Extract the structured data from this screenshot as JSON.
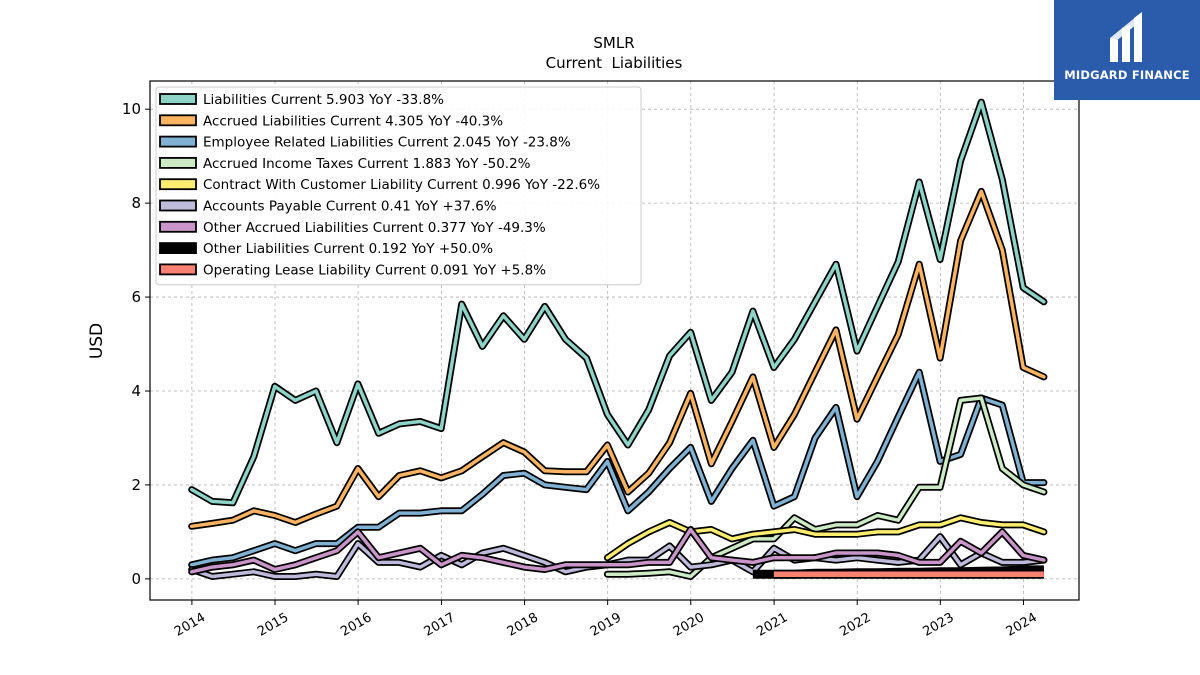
{
  "brand": {
    "name": "MIDGARD FINANCE",
    "logo_icon": "midgard-m-logo-icon",
    "background_color": "#2a5cab"
  },
  "chart_data": {
    "type": "line",
    "title": "SMLR",
    "subtitle": "Current  Liabilities",
    "xlabel": "",
    "ylabel": "USD",
    "xlim": [
      "2013-07-01",
      "2024-09-01"
    ],
    "ylim": [
      -0.45,
      10.6
    ],
    "yticks": [
      0,
      2,
      4,
      6,
      8,
      10
    ],
    "xticks": [
      "2014",
      "2015",
      "2016",
      "2017",
      "2018",
      "2019",
      "2020",
      "2021",
      "2022",
      "2023",
      "2024"
    ],
    "grid": true,
    "legend_position": "top-left",
    "series": [
      {
        "name": "Liabilities Current",
        "legend": "Liabilities Current  5.903 YoY -33.8%",
        "color": "#8dd3c7",
        "x": [
          "2013-12-31",
          "2014-03-31",
          "2014-06-30",
          "2014-09-30",
          "2014-12-31",
          "2015-03-31",
          "2015-06-30",
          "2015-09-30",
          "2015-12-31",
          "2016-03-31",
          "2016-06-30",
          "2016-09-30",
          "2016-12-31",
          "2017-03-31",
          "2017-06-30",
          "2017-09-30",
          "2017-12-31",
          "2018-03-31",
          "2018-06-30",
          "2018-09-30",
          "2018-12-31",
          "2019-03-31",
          "2019-06-30",
          "2019-09-30",
          "2019-12-31",
          "2020-03-31",
          "2020-06-30",
          "2020-09-30",
          "2020-12-31",
          "2021-03-31",
          "2021-06-30",
          "2021-09-30",
          "2021-12-31",
          "2022-03-31",
          "2022-06-30",
          "2022-09-30",
          "2022-12-31",
          "2023-03-31",
          "2023-06-30",
          "2023-09-30",
          "2023-12-31",
          "2024-03-31"
        ],
        "values": [
          1.9,
          1.65,
          1.62,
          2.6,
          4.1,
          3.8,
          4.0,
          2.9,
          4.15,
          3.1,
          3.3,
          3.35,
          3.2,
          5.85,
          4.95,
          5.6,
          5.1,
          5.8,
          5.1,
          4.7,
          3.5,
          2.85,
          3.6,
          4.75,
          5.25,
          3.8,
          4.4,
          5.7,
          4.5,
          5.1,
          5.9,
          6.7,
          4.85,
          5.8,
          6.75,
          8.45,
          6.8,
          8.9,
          10.15,
          8.5,
          6.2,
          5.9
        ]
      },
      {
        "name": "Accrued Liabilities Current",
        "legend": "Accrued Liabilities Current  4.305 YoY -40.3%",
        "color": "#fdb462",
        "x": [
          "2013-12-31",
          "2014-03-31",
          "2014-06-30",
          "2014-09-30",
          "2014-12-31",
          "2015-03-31",
          "2015-06-30",
          "2015-09-30",
          "2015-12-31",
          "2016-03-31",
          "2016-06-30",
          "2016-09-30",
          "2016-12-31",
          "2017-03-31",
          "2017-06-30",
          "2017-09-30",
          "2017-12-31",
          "2018-03-31",
          "2018-06-30",
          "2018-09-30",
          "2018-12-31",
          "2019-03-31",
          "2019-06-30",
          "2019-09-30",
          "2019-12-31",
          "2020-03-31",
          "2020-06-30",
          "2020-09-30",
          "2020-12-31",
          "2021-03-31",
          "2021-06-30",
          "2021-09-30",
          "2021-12-31",
          "2022-03-31",
          "2022-06-30",
          "2022-09-30",
          "2022-12-31",
          "2023-03-31",
          "2023-06-30",
          "2023-09-30",
          "2023-12-31",
          "2024-03-31"
        ],
        "values": [
          1.12,
          1.18,
          1.25,
          1.45,
          1.35,
          1.2,
          1.38,
          1.55,
          2.35,
          1.75,
          2.2,
          2.3,
          2.15,
          2.3,
          2.6,
          2.9,
          2.7,
          2.3,
          2.28,
          2.28,
          2.85,
          1.85,
          2.25,
          2.9,
          3.95,
          2.45,
          3.35,
          4.3,
          2.8,
          3.5,
          4.4,
          5.3,
          3.4,
          4.3,
          5.2,
          6.7,
          4.7,
          7.2,
          8.25,
          7.0,
          4.5,
          4.3
        ]
      },
      {
        "name": "Employee Related Liabilities Current",
        "legend": "Employee Related Liabilities Current  2.045 YoY -23.8%",
        "color": "#80b1d3",
        "x": [
          "2013-12-31",
          "2014-03-31",
          "2014-06-30",
          "2014-09-30",
          "2014-12-31",
          "2015-03-31",
          "2015-06-30",
          "2015-09-30",
          "2015-12-31",
          "2016-03-31",
          "2016-06-30",
          "2016-09-30",
          "2016-12-31",
          "2017-03-31",
          "2017-06-30",
          "2017-09-30",
          "2017-12-31",
          "2018-03-31",
          "2018-06-30",
          "2018-09-30",
          "2018-12-31",
          "2019-03-31",
          "2019-06-30",
          "2019-09-30",
          "2019-12-31",
          "2020-03-31",
          "2020-06-30",
          "2020-09-30",
          "2020-12-31",
          "2021-03-31",
          "2021-06-30",
          "2021-09-30",
          "2021-12-31",
          "2022-03-31",
          "2022-06-30",
          "2022-09-30",
          "2022-12-31",
          "2023-03-31",
          "2023-06-30",
          "2023-09-30",
          "2023-12-31",
          "2024-03-31"
        ],
        "values": [
          0.3,
          0.4,
          0.45,
          0.6,
          0.75,
          0.6,
          0.75,
          0.75,
          1.1,
          1.1,
          1.4,
          1.4,
          1.45,
          1.45,
          1.8,
          2.2,
          2.25,
          2.0,
          1.95,
          1.9,
          2.5,
          1.45,
          1.85,
          2.35,
          2.8,
          1.65,
          2.35,
          2.95,
          1.55,
          1.75,
          3.0,
          3.65,
          1.75,
          2.5,
          3.45,
          4.4,
          2.5,
          2.65,
          3.85,
          3.7,
          2.05,
          2.05
        ]
      },
      {
        "name": "Accrued Income Taxes Current",
        "legend": "Accrued Income Taxes Current  1.883 YoY -50.2%",
        "color": "#ccebc5",
        "x": [
          "2018-12-31",
          "2019-03-31",
          "2019-06-30",
          "2019-09-30",
          "2019-12-31",
          "2020-03-31",
          "2020-06-30",
          "2020-09-30",
          "2020-12-31",
          "2021-03-31",
          "2021-06-30",
          "2021-09-30",
          "2021-12-31",
          "2022-03-31",
          "2022-06-30",
          "2022-09-30",
          "2022-12-31",
          "2023-03-31",
          "2023-06-30",
          "2023-09-30",
          "2023-12-31",
          "2024-03-31"
        ],
        "values": [
          0.1,
          0.1,
          0.12,
          0.15,
          0.05,
          0.45,
          0.65,
          0.85,
          0.85,
          1.3,
          1.05,
          1.15,
          1.15,
          1.35,
          1.25,
          1.95,
          1.95,
          3.8,
          3.85,
          2.35,
          2.0,
          1.85
        ]
      },
      {
        "name": "Contract With Customer Liability Current",
        "legend": "Contract With Customer Liability Current  0.996 YoY -22.6%",
        "color": "#ffed6f",
        "x": [
          "2018-12-31",
          "2019-03-31",
          "2019-06-30",
          "2019-09-30",
          "2019-12-31",
          "2020-03-31",
          "2020-06-30",
          "2020-09-30",
          "2020-12-31",
          "2021-03-31",
          "2021-06-30",
          "2021-09-30",
          "2021-12-31",
          "2022-03-31",
          "2022-06-30",
          "2022-09-30",
          "2022-12-31",
          "2023-03-31",
          "2023-06-30",
          "2023-09-30",
          "2023-12-31",
          "2024-03-31"
        ],
        "values": [
          0.45,
          0.75,
          1.0,
          1.2,
          1.0,
          1.05,
          0.85,
          0.95,
          1.0,
          1.05,
          0.95,
          0.95,
          0.95,
          1.0,
          1.0,
          1.15,
          1.15,
          1.3,
          1.2,
          1.15,
          1.15,
          1.0
        ]
      },
      {
        "name": "Accounts Payable Current",
        "legend": "Accounts Payable Current  0.41 YoY +37.6%",
        "color": "#bebada",
        "x": [
          "2013-12-31",
          "2014-03-31",
          "2014-06-30",
          "2014-09-30",
          "2014-12-31",
          "2015-03-31",
          "2015-06-30",
          "2015-09-30",
          "2015-12-31",
          "2016-03-31",
          "2016-06-30",
          "2016-09-30",
          "2016-12-31",
          "2017-03-31",
          "2017-06-30",
          "2017-09-30",
          "2017-12-31",
          "2018-03-31",
          "2018-06-30",
          "2018-09-30",
          "2018-12-31",
          "2019-03-31",
          "2019-06-30",
          "2019-09-30",
          "2019-12-31",
          "2020-03-31",
          "2020-06-30",
          "2020-09-30",
          "2020-12-31",
          "2021-03-31",
          "2021-06-30",
          "2021-09-30",
          "2021-12-31",
          "2022-03-31",
          "2022-06-30",
          "2022-09-30",
          "2022-12-31",
          "2023-03-31",
          "2023-06-30",
          "2023-09-30",
          "2023-12-31",
          "2024-03-31"
        ],
        "values": [
          0.2,
          0.05,
          0.1,
          0.15,
          0.05,
          0.05,
          0.1,
          0.05,
          0.75,
          0.35,
          0.35,
          0.25,
          0.5,
          0.3,
          0.55,
          0.65,
          0.5,
          0.35,
          0.15,
          0.25,
          0.3,
          0.4,
          0.4,
          0.7,
          0.25,
          0.3,
          0.4,
          0.15,
          0.65,
          0.4,
          0.45,
          0.4,
          0.45,
          0.4,
          0.35,
          0.4,
          0.9,
          0.3,
          0.55,
          0.35,
          0.35,
          0.4
        ]
      },
      {
        "name": "Other Accrued Liabilities Current",
        "legend": "Other Accrued Liabilities Current  0.377 YoY -49.3%",
        "color": "#c994c7",
        "x": [
          "2013-12-31",
          "2014-03-31",
          "2014-06-30",
          "2014-09-30",
          "2014-12-31",
          "2015-03-31",
          "2015-06-30",
          "2015-09-30",
          "2015-12-31",
          "2016-03-31",
          "2016-06-30",
          "2016-09-30",
          "2016-12-31",
          "2017-03-31",
          "2017-06-30",
          "2017-09-30",
          "2017-12-31",
          "2018-03-31",
          "2018-06-30",
          "2018-09-30",
          "2018-12-31",
          "2019-03-31",
          "2019-06-30",
          "2019-09-30",
          "2019-12-31",
          "2020-03-31",
          "2020-06-30",
          "2020-09-30",
          "2020-12-31",
          "2021-03-31",
          "2021-06-30",
          "2021-09-30",
          "2021-12-31",
          "2022-03-31",
          "2022-06-30",
          "2022-09-30",
          "2022-12-31",
          "2023-03-31",
          "2023-06-30",
          "2023-09-30",
          "2023-12-31",
          "2024-03-31"
        ],
        "values": [
          0.15,
          0.25,
          0.3,
          0.4,
          0.2,
          0.3,
          0.45,
          0.6,
          1.0,
          0.45,
          0.55,
          0.65,
          0.3,
          0.5,
          0.45,
          0.35,
          0.25,
          0.2,
          0.3,
          0.3,
          0.3,
          0.3,
          0.35,
          0.35,
          1.05,
          0.45,
          0.4,
          0.35,
          0.45,
          0.45,
          0.45,
          0.55,
          0.55,
          0.55,
          0.5,
          0.35,
          0.35,
          0.8,
          0.55,
          1.0,
          0.5,
          0.4
        ]
      },
      {
        "name": "Other Liabilities Current",
        "legend": "Other Liabilities Current  0.192 YoY +50.0%",
        "color": "#000000",
        "x": [
          "2020-09-30",
          "2020-12-31",
          "2021-03-31",
          "2021-06-30",
          "2021-09-30",
          "2021-12-31",
          "2022-03-31",
          "2022-06-30",
          "2022-09-30",
          "2022-12-31",
          "2023-03-31",
          "2023-06-30",
          "2023-09-30",
          "2023-12-31",
          "2024-03-31"
        ],
        "values": [
          0.1,
          0.1,
          0.1,
          0.12,
          0.12,
          0.13,
          0.13,
          0.14,
          0.14,
          0.15,
          0.15,
          0.16,
          0.17,
          0.19,
          0.19
        ]
      },
      {
        "name": "Operating Lease Liability Current",
        "legend": "Operating Lease Liability Current  0.091 YoY +5.8%",
        "color": "#fb8072",
        "x": [
          "2020-12-31",
          "2021-03-31",
          "2021-06-30",
          "2021-09-30",
          "2021-12-31",
          "2022-03-31",
          "2022-06-30",
          "2022-09-30",
          "2022-12-31",
          "2023-03-31",
          "2023-06-30",
          "2023-09-30",
          "2023-12-31",
          "2024-03-31"
        ],
        "values": [
          0.1,
          0.1,
          0.1,
          0.1,
          0.1,
          0.1,
          0.1,
          0.1,
          0.1,
          0.1,
          0.1,
          0.1,
          0.1,
          0.1
        ]
      }
    ]
  }
}
